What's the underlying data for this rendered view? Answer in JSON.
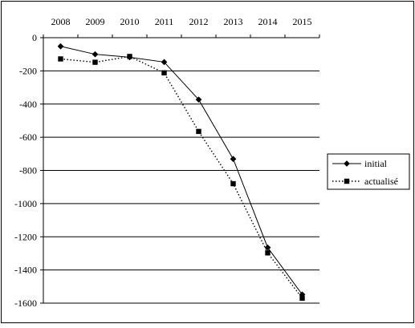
{
  "chart_data": {
    "type": "line",
    "title": "",
    "xlabel": "",
    "ylabel": "",
    "x": [
      "2008",
      "2009",
      "2010",
      "2011",
      "2012",
      "2013",
      "2014",
      "2015"
    ],
    "ylim": [
      -1600,
      0
    ],
    "yticks": [
      0,
      -200,
      -400,
      -600,
      -800,
      -1000,
      -1200,
      -1400,
      -1600
    ],
    "ytick_labels": [
      "0",
      "-200",
      "-400",
      "-600",
      "-800",
      "-1000",
      "-1200",
      "-1400",
      "-1600"
    ],
    "x_axis_position": "top",
    "grid": true,
    "legend_position": "right",
    "series": [
      {
        "name": "initial",
        "marker": "diamond",
        "line_style": "solid",
        "color": "#000000",
        "values": [
          -52,
          -100,
          -118,
          -147,
          -373,
          -731,
          -1265,
          -1548
        ]
      },
      {
        "name": "actualisé",
        "marker": "square",
        "line_style": "dotted",
        "color": "#000000",
        "values": [
          -128,
          -148,
          -113,
          -212,
          -565,
          -880,
          -1297,
          -1570
        ]
      }
    ]
  }
}
